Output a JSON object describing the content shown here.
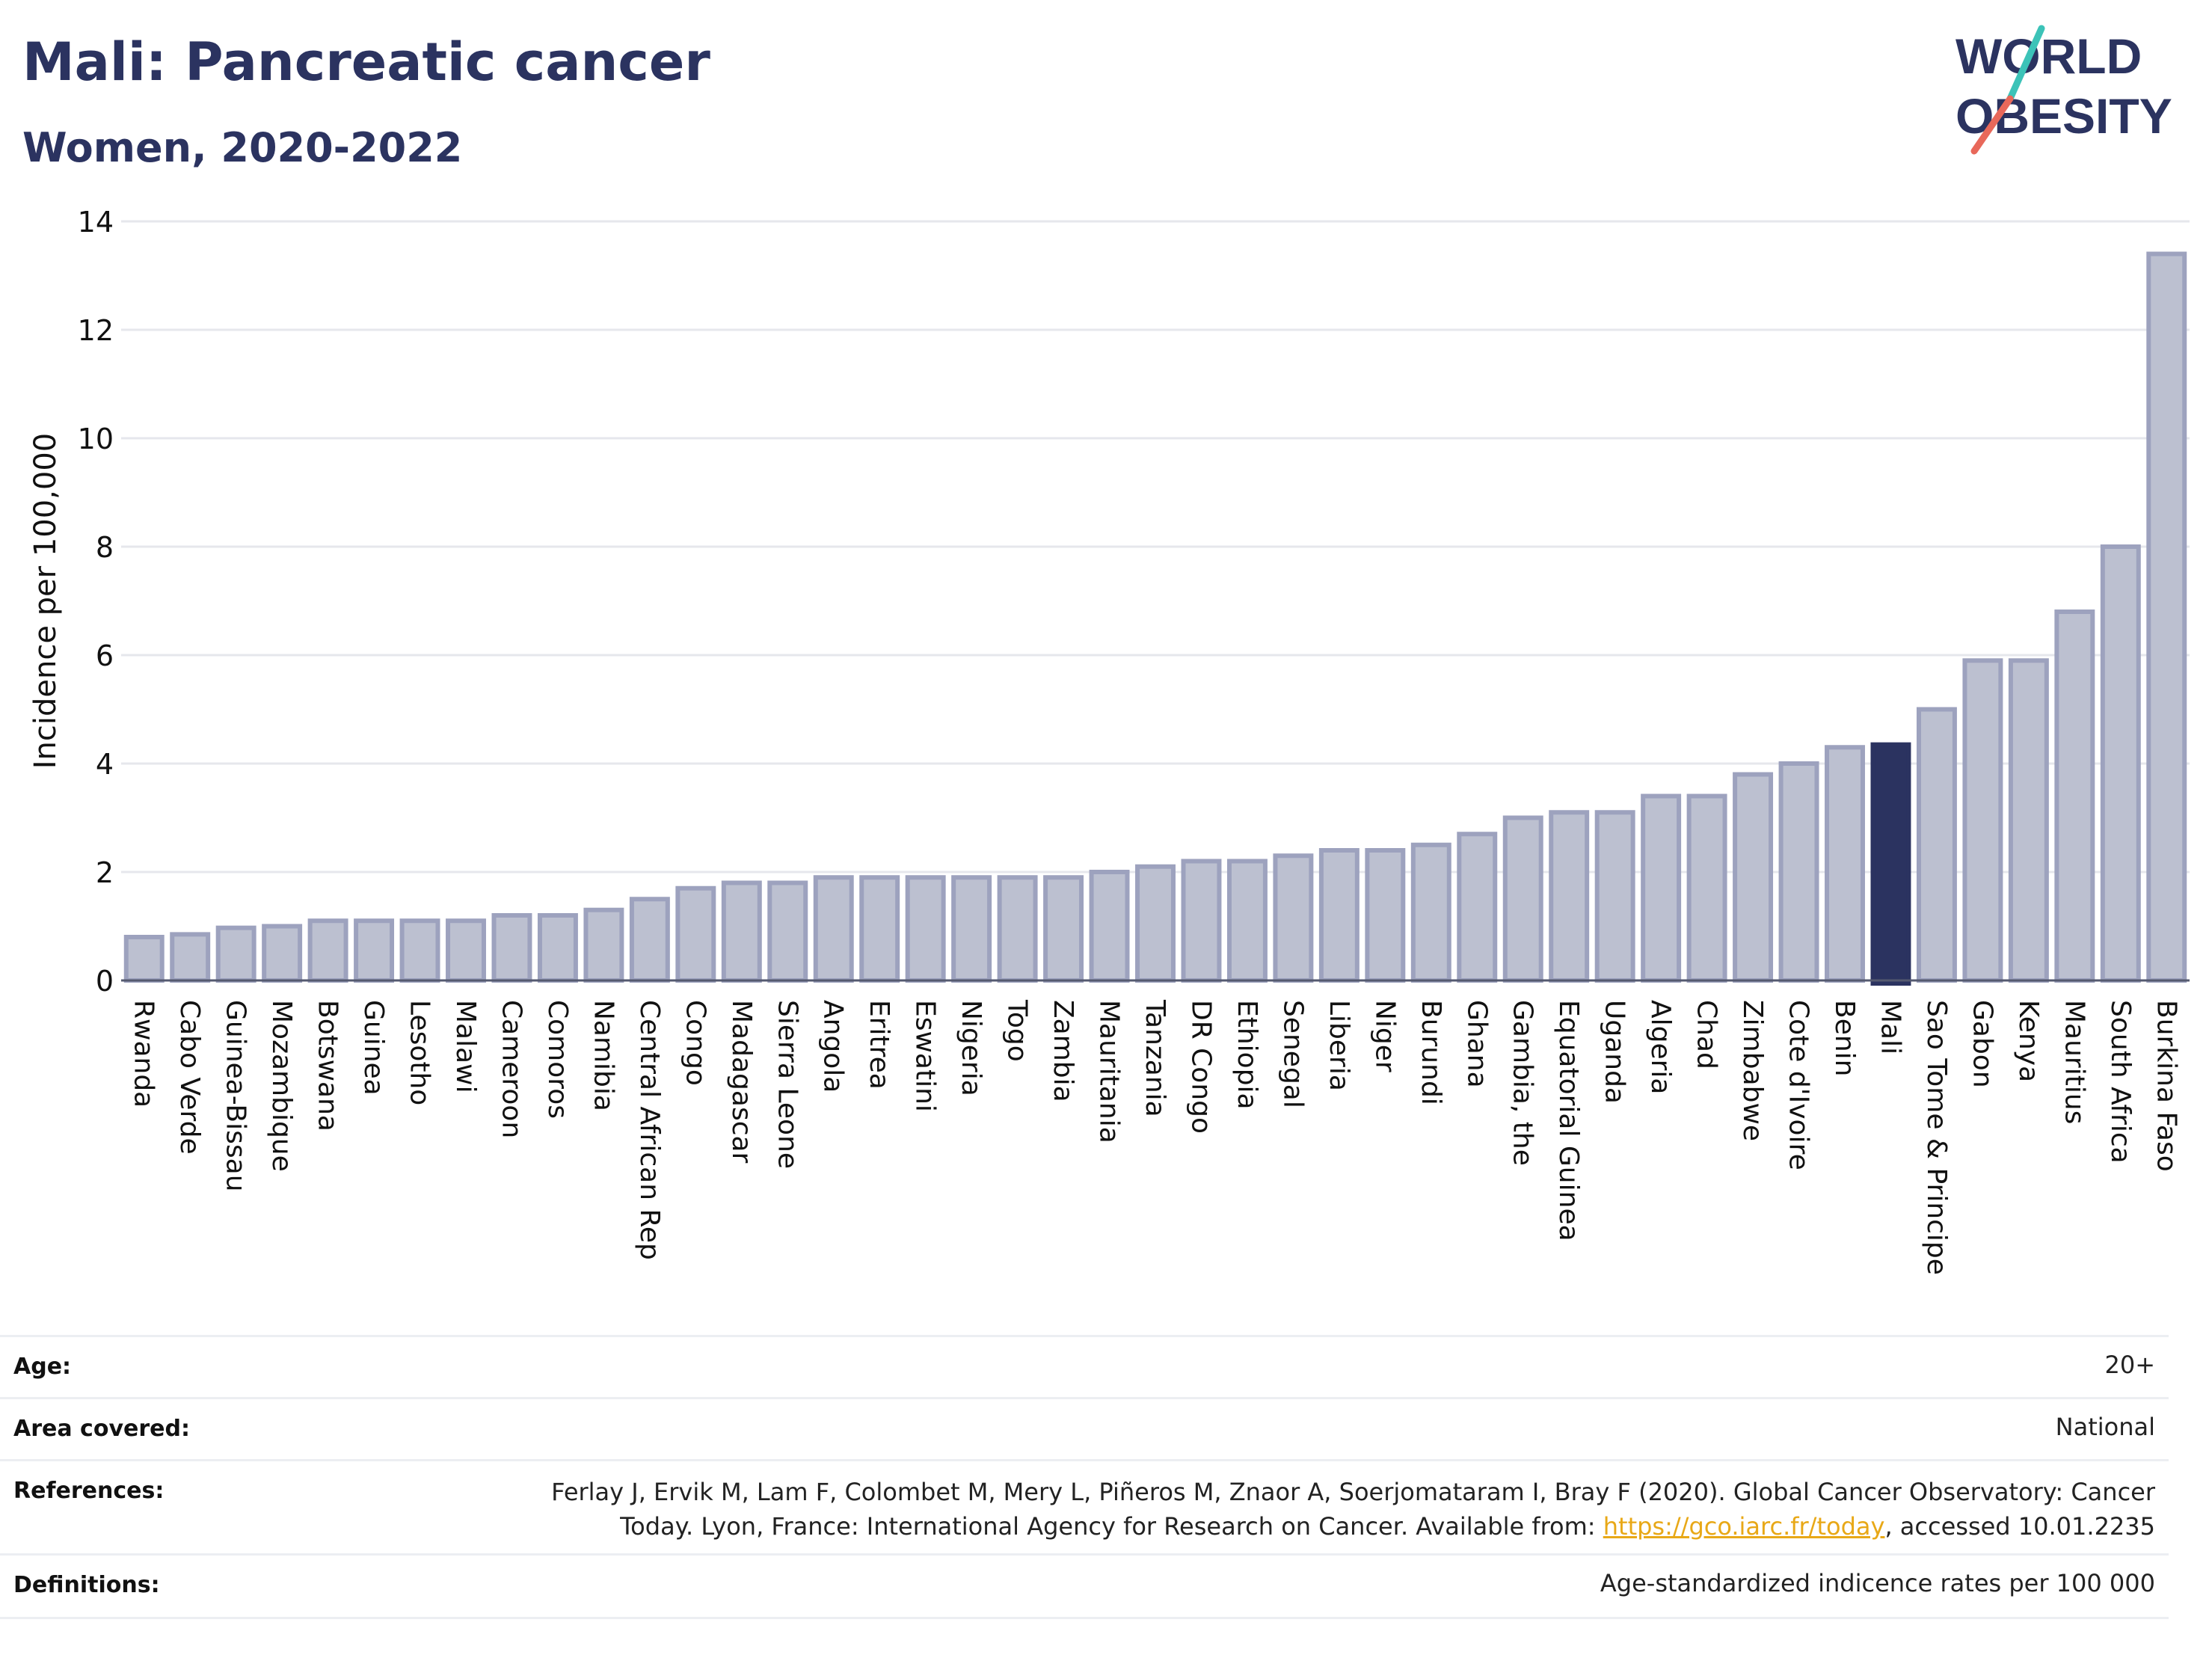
{
  "title": "Mali: Pancreatic cancer",
  "subtitle": "Women, 2020-2022",
  "logo": {
    "line1": "WORLD",
    "line2": "OBESITY"
  },
  "colors": {
    "title": "#2b3360",
    "bar_fill": "#bcc0d0",
    "bar_stroke": "#9da2be",
    "highlight": "#2b3360",
    "grid": "#e6e7ec",
    "link": "#e8a817"
  },
  "chart_data": {
    "type": "bar",
    "ylabel": "Incidence per 100,000",
    "ylim": [
      0,
      14
    ],
    "yticks": [
      0,
      2,
      4,
      6,
      8,
      10,
      12,
      14
    ],
    "highlight": "Mali",
    "categories": [
      "Rwanda",
      "Cabo Verde",
      "Guinea-Bissau",
      "Mozambique",
      "Botswana",
      "Guinea",
      "Lesotho",
      "Malawi",
      "Cameroon",
      "Comoros",
      "Namibia",
      "Central African Rep",
      "Congo",
      "Madagascar",
      "Sierra Leone",
      "Angola",
      "Eritrea",
      "Eswatini",
      "Nigeria",
      "Togo",
      "Zambia",
      "Mauritania",
      "Tanzania",
      "DR Congo",
      "Ethiopia",
      "Senegal",
      "Liberia",
      "Niger",
      "Burundi",
      "Ghana",
      "Gambia, the",
      "Equatorial Guinea",
      "Uganda",
      "Algeria",
      "Chad",
      "Zimbabwe",
      "Cote d'Ivoire",
      "Benin",
      "Mali",
      "Sao Tome & Principe",
      "Gabon",
      "Kenya",
      "Mauritius",
      "South Africa",
      "Burkina Faso"
    ],
    "values": [
      0.8,
      0.85,
      0.97,
      1.0,
      1.1,
      1.1,
      1.1,
      1.1,
      1.2,
      1.2,
      1.3,
      1.5,
      1.7,
      1.8,
      1.8,
      1.9,
      1.9,
      1.9,
      1.9,
      1.9,
      1.9,
      2.0,
      2.1,
      2.2,
      2.2,
      2.3,
      2.4,
      2.4,
      2.5,
      2.7,
      3.0,
      3.1,
      3.1,
      3.4,
      3.4,
      3.8,
      4.0,
      4.3,
      4.35,
      5.0,
      5.9,
      5.9,
      6.8,
      8.0,
      13.4
    ],
    "grid": true
  },
  "meta": {
    "age_label": "Age:",
    "age_value": "20+",
    "area_label": "Area covered:",
    "area_value": "National",
    "references_label": "References:",
    "references_line1": "Ferlay J, Ervik M, Lam F, Colombet M, Mery L, Piñeros M, Znaor A, Soerjomataram I, Bray F (2020). Global Cancer Observatory: Cancer",
    "references_line2_pre": "Today. Lyon, France: International Agency for Research on Cancer. Available from: ",
    "references_link": "https://gco.iarc.fr/today",
    "references_line2_post": ", accessed 10.01.2235",
    "definitions_label": "Definitions:",
    "definitions_value": "Age-standardized indicence rates per 100 000"
  }
}
